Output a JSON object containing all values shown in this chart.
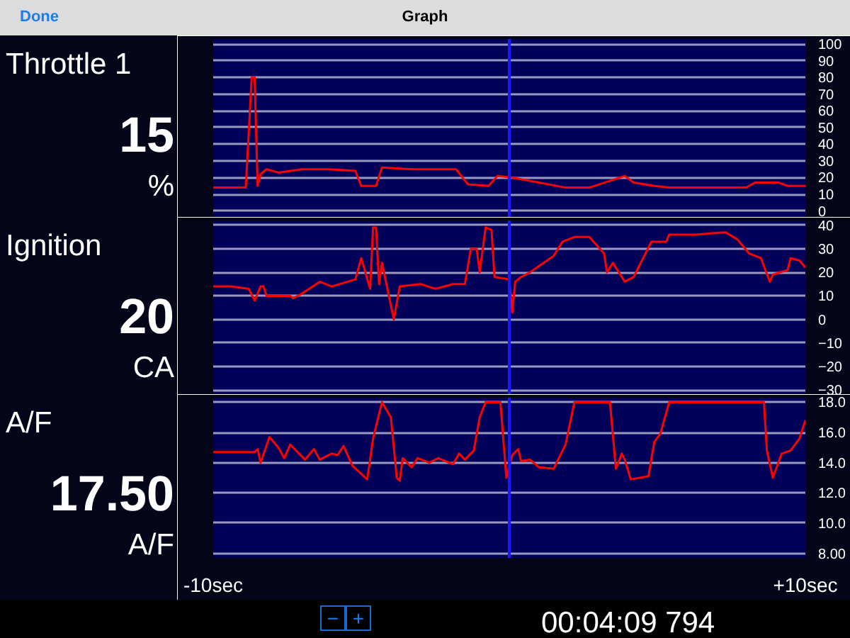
{
  "chart_data": [
    {
      "type": "line",
      "title": "Throttle 1",
      "subtitle": "15",
      "ylabel": "%",
      "annotations": [
        "Done",
        "Graph"
      ],
      "tick_labels": "y",
      "grid": "y",
      "color": "#ff0000",
      "x": [
        -10,
        -8.9,
        -8.7,
        -8.6,
        -8.5,
        -8.4,
        -8.2,
        -7.8,
        -7.0,
        -6.1,
        -5.2,
        -5.0,
        -4.5,
        -4.3,
        -3.3,
        -1.8,
        -1.4,
        -0.7,
        -0.4,
        0.1,
        1.0,
        1.9,
        2.7,
        3.4,
        3.9,
        4.2,
        4.9,
        5.4,
        8.0,
        8.3,
        9.1,
        9.4,
        10
      ],
      "values": [
        14,
        14,
        80,
        80,
        15,
        22,
        25,
        23,
        25,
        25,
        24,
        15,
        15,
        26,
        25,
        25,
        16,
        15,
        21,
        20,
        17,
        14,
        14,
        18,
        21,
        17,
        15,
        14,
        14,
        17,
        17,
        15,
        15
      ],
      "xlim": [
        -10,
        10
      ],
      "ylim": [
        -4,
        103
      ],
      "yticks": [
        0,
        10,
        20,
        30,
        40,
        50,
        60,
        70,
        80,
        90,
        100
      ],
      "ref_lines": [
        {
          "axis": "x",
          "value": 0,
          "color": "#1a1aff"
        }
      ]
    },
    {
      "type": "line",
      "title": "Ignition",
      "subtitle": "20",
      "ylabel": "CA",
      "tick_labels": "y",
      "grid": "y",
      "color": "#ff0000",
      "x": [
        -10,
        -9.4,
        -8.8,
        -8.6,
        -8.4,
        -8.3,
        -8.2,
        -7.4,
        -7.3,
        -7.0,
        -6.4,
        -6.0,
        -5.2,
        -5.0,
        -4.7,
        -4.6,
        -4.5,
        -4.4,
        -4.3,
        -4.1,
        -3.9,
        -3.7,
        -3.0,
        -2.5,
        -1.9,
        -1.5,
        -1.3,
        -1.1,
        -1.0,
        -0.8,
        -0.6,
        -0.5,
        0.0,
        0.1,
        0.2,
        0.4,
        0.7,
        1.5,
        1.8,
        2.2,
        2.7,
        3.2,
        3.3,
        3.5,
        3.9,
        4.2,
        4.8,
        5.3,
        5.4,
        6.3,
        7.3,
        7.7,
        8.1,
        8.5,
        8.8,
        8.9,
        9.4,
        9.5,
        9.8,
        10
      ],
      "values": [
        14,
        14,
        13,
        8,
        14,
        14,
        10,
        10,
        9,
        11,
        16,
        14,
        17,
        26,
        13,
        39,
        39,
        15,
        24,
        12,
        0,
        14,
        15,
        13,
        15,
        15,
        30,
        30,
        20,
        39,
        38,
        18,
        17,
        3,
        16,
        18,
        20,
        27,
        33,
        35,
        35,
        28,
        20,
        24,
        16,
        18,
        33,
        33,
        36,
        36,
        37,
        34,
        28,
        26,
        16,
        19,
        21,
        26,
        25,
        22
      ],
      "xlim": [
        -10,
        10
      ],
      "ylim": [
        -32,
        42
      ],
      "yticks": [
        -30,
        -20,
        -10,
        0,
        10,
        20,
        30,
        40
      ],
      "ref_lines": [
        {
          "axis": "x",
          "value": 0,
          "color": "#1a1aff"
        }
      ]
    },
    {
      "type": "line",
      "title": "A/F",
      "subtitle": "17.50",
      "ylabel": "A/F",
      "annotations": [
        "−",
        "+",
        "00:04:09 794"
      ],
      "grid": "y",
      "color": "#ff0000",
      "x": [
        -10,
        -8.6,
        -8.5,
        -8.4,
        -8.1,
        -7.8,
        -7.6,
        -7.4,
        -7.2,
        -6.9,
        -6.6,
        -6.4,
        -6.0,
        -5.8,
        -5.6,
        -5.3,
        -4.8,
        -4.7,
        -4.6,
        -4.3,
        -4.0,
        -3.8,
        -3.7,
        -3.6,
        -3.3,
        -3.1,
        -2.7,
        -2.4,
        -1.9,
        -1.7,
        -1.5,
        -1.2,
        -1.0,
        -0.8,
        -0.3,
        -0.1,
        0.1,
        0.3,
        0.4,
        0.7,
        1.0,
        1.5,
        1.9,
        2.2,
        3.4,
        3.6,
        3.8,
        3.9,
        4.1,
        4.7,
        4.9,
        5.1,
        5.4,
        8.6,
        8.7,
        8.9,
        9.2,
        9.5,
        9.8,
        10
      ],
      "values": [
        14.7,
        14.7,
        14.9,
        14.0,
        15.7,
        15.0,
        14.3,
        15.2,
        14.8,
        14.2,
        14.9,
        14.2,
        14.6,
        14.5,
        15.1,
        13.8,
        12.9,
        14.2,
        15.6,
        18.0,
        17.0,
        13.0,
        12.8,
        14.3,
        13.7,
        14.3,
        14.0,
        14.3,
        13.9,
        14.6,
        14.2,
        14.8,
        17.0,
        18.0,
        18.0,
        13.0,
        14.5,
        14.9,
        14.1,
        14.2,
        13.7,
        13.6,
        15.2,
        18.0,
        18.0,
        13.6,
        14.6,
        14.2,
        12.9,
        13.1,
        15.4,
        15.9,
        18.0,
        18.0,
        14.8,
        13.0,
        14.6,
        14.8,
        15.6,
        16.8
      ],
      "xlim": [
        -10,
        10
      ],
      "xticks": [
        {
          "value": -10,
          "label": "-10sec"
        },
        {
          "value": 10,
          "label": "+10sec"
        }
      ],
      "ylim": [
        7.7,
        18.3
      ],
      "yticks": [
        {
          "value": 8,
          "label": "8.00"
        },
        {
          "value": 10,
          "label": "10.0"
        },
        {
          "value": 12,
          "label": "12.0"
        },
        {
          "value": 14,
          "label": "14.0"
        },
        {
          "value": 16,
          "label": "16.0"
        },
        {
          "value": 18,
          "label": "18.0"
        }
      ],
      "ref_lines": [
        {
          "axis": "x",
          "value": 0,
          "color": "#1a1aff"
        }
      ]
    }
  ]
}
